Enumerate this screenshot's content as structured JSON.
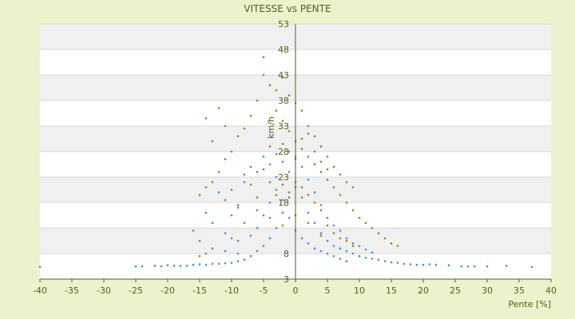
{
  "chart_data": {
    "type": "scatter",
    "title": "VITESSE vs PENTE",
    "xlabel": "Pente [%]",
    "ylabel": "km/h",
    "xlim": [
      -40,
      40
    ],
    "ylim": [
      3,
      53
    ],
    "x_ticks": [
      "-40",
      "-35",
      "-30",
      "-25",
      "-20",
      "-15",
      "-10",
      "-5",
      "0",
      "5",
      "10",
      "15",
      "20",
      "25",
      "30",
      "35",
      "40"
    ],
    "y_ticks": [
      "3",
      "8",
      "13",
      "18",
      "23",
      "28",
      "33",
      "38",
      "43",
      "48",
      "53"
    ],
    "y_tick_labels_shown": [
      "53",
      "48",
      "43",
      "38",
      "33",
      "28",
      "23",
      "18",
      "8",
      "3"
    ],
    "grid": true,
    "series": [
      {
        "color": "#3b8fd6",
        "points": [
          [
            -40,
            5.4
          ],
          [
            -25,
            5.5
          ],
          [
            -24,
            5.5
          ],
          [
            -22,
            5.6
          ],
          [
            -21,
            5.5
          ],
          [
            -20,
            5.7
          ],
          [
            -19,
            5.6
          ],
          [
            -18,
            5.6
          ],
          [
            -17,
            5.6
          ],
          [
            -16,
            5.8
          ],
          [
            -15,
            5.9
          ],
          [
            -14,
            5.8
          ],
          [
            -13,
            6.0
          ],
          [
            -12,
            6.0
          ],
          [
            -11,
            6.1
          ],
          [
            -10,
            6.2
          ],
          [
            -9,
            6.5
          ],
          [
            -8,
            6.8
          ],
          [
            -7,
            7.5
          ],
          [
            -6,
            8.5
          ],
          [
            -5,
            9.5
          ],
          [
            -4,
            11.0
          ],
          [
            -3,
            13.0
          ],
          [
            -2,
            16.0
          ],
          [
            -1,
            19.0
          ],
          [
            0,
            21.0
          ],
          [
            1,
            19.0
          ],
          [
            2,
            16.0
          ],
          [
            3,
            14.0
          ],
          [
            4,
            12.0
          ],
          [
            5,
            10.5
          ],
          [
            6,
            9.5
          ],
          [
            7,
            9.0
          ],
          [
            8,
            8.5
          ],
          [
            9,
            8.0
          ],
          [
            10,
            7.5
          ],
          [
            11,
            7.2
          ],
          [
            12,
            7.0
          ],
          [
            13,
            6.8
          ],
          [
            14,
            6.5
          ],
          [
            15,
            6.3
          ],
          [
            16,
            6.2
          ],
          [
            17,
            6.0
          ],
          [
            18,
            5.9
          ],
          [
            19,
            5.8
          ],
          [
            20,
            5.8
          ],
          [
            21,
            5.9
          ],
          [
            22,
            5.8
          ],
          [
            24,
            5.7
          ],
          [
            26,
            5.5
          ],
          [
            27,
            5.5
          ],
          [
            28,
            5.5
          ],
          [
            30,
            5.5
          ],
          [
            33,
            5.6
          ],
          [
            37,
            5.4
          ],
          [
            -12,
            20.0
          ],
          [
            -11,
            18.5
          ],
          [
            -10,
            20.5
          ],
          [
            -9,
            17.0
          ],
          [
            -8,
            22.0
          ],
          [
            -7,
            25.0
          ],
          [
            -6,
            24.0
          ],
          [
            -5,
            27.0
          ],
          [
            -4,
            25.5
          ],
          [
            -3,
            23.0
          ],
          [
            -2,
            26.0
          ],
          [
            -1,
            24.0
          ],
          [
            0,
            27.0
          ],
          [
            1,
            25.0
          ],
          [
            2,
            22.5
          ],
          [
            3,
            20.0
          ],
          [
            4,
            17.5
          ],
          [
            5,
            15.0
          ],
          [
            6,
            13.5
          ],
          [
            7,
            12.5
          ],
          [
            8,
            11.0
          ],
          [
            9,
            10.0
          ],
          [
            10,
            9.5
          ],
          [
            11,
            8.8
          ],
          [
            12,
            8.2
          ],
          [
            -14,
            16.0
          ],
          [
            -13,
            14.0
          ],
          [
            -11,
            12.0
          ],
          [
            -9,
            10.5
          ],
          [
            -7,
            11.5
          ],
          [
            -6,
            13.0
          ],
          [
            -5,
            15.5
          ],
          [
            -4,
            18.0
          ],
          [
            -3,
            20.5
          ],
          [
            -2,
            18.5
          ],
          [
            -1,
            15.0
          ],
          [
            0,
            12.5
          ],
          [
            1,
            11.0
          ],
          [
            2,
            10.0
          ],
          [
            3,
            9.0
          ],
          [
            4,
            8.5
          ],
          [
            5,
            8.0
          ],
          [
            6,
            7.5
          ],
          [
            7,
            7.0
          ],
          [
            8,
            6.5
          ],
          [
            -16,
            12.5
          ],
          [
            -15,
            10.5
          ],
          [
            -13,
            9.0
          ],
          [
            -11,
            8.5
          ],
          [
            -9,
            8.0
          ]
        ]
      },
      {
        "color": "#8a8a1a",
        "points": [
          [
            -5,
            46.5
          ],
          [
            -5,
            43.0
          ],
          [
            -4,
            41.0
          ],
          [
            -3,
            40.0
          ],
          [
            -2,
            42.5
          ],
          [
            -1,
            39.0
          ],
          [
            0,
            37.5
          ],
          [
            1,
            36.0
          ],
          [
            2,
            33.0
          ],
          [
            3,
            31.0
          ],
          [
            4,
            29.0
          ],
          [
            5,
            27.0
          ],
          [
            6,
            25.0
          ],
          [
            7,
            23.5
          ],
          [
            8,
            22.0
          ],
          [
            9,
            21.0
          ],
          [
            -6,
            38.0
          ],
          [
            -7,
            35.0
          ],
          [
            -8,
            32.5
          ],
          [
            -9,
            31.0
          ],
          [
            -10,
            28.0
          ],
          [
            -11,
            26.5
          ],
          [
            -12,
            24.0
          ],
          [
            -13,
            22.0
          ],
          [
            -14,
            21.0
          ],
          [
            -15,
            19.5
          ],
          [
            -12,
            36.5
          ],
          [
            -14,
            34.5
          ],
          [
            -13,
            30.0
          ],
          [
            -11,
            33.0
          ],
          [
            -3,
            36.0
          ],
          [
            -2,
            34.0
          ],
          [
            -1,
            32.0
          ],
          [
            0,
            30.0
          ],
          [
            1,
            28.5
          ],
          [
            2,
            27.0
          ],
          [
            3,
            25.5
          ],
          [
            4,
            24.0
          ],
          [
            5,
            22.5
          ],
          [
            6,
            21.0
          ],
          [
            7,
            19.5
          ],
          [
            8,
            18.0
          ],
          [
            9,
            16.5
          ],
          [
            10,
            15.0
          ],
          [
            11,
            14.0
          ],
          [
            12,
            13.0
          ],
          [
            13,
            12.0
          ],
          [
            14,
            11.0
          ],
          [
            15,
            10.0
          ],
          [
            16,
            9.5
          ],
          [
            -4,
            29.0
          ],
          [
            -3,
            27.5
          ],
          [
            -2,
            29.5
          ],
          [
            -1,
            28.0
          ],
          [
            0,
            26.5
          ],
          [
            1,
            30.5
          ],
          [
            2,
            31.5
          ],
          [
            3,
            28.0
          ],
          [
            4,
            26.0
          ],
          [
            5,
            24.5
          ],
          [
            -8,
            23.5
          ],
          [
            -7,
            21.5
          ],
          [
            -6,
            19.0
          ],
          [
            -9,
            17.5
          ],
          [
            -10,
            15.5
          ],
          [
            -5,
            24.5
          ],
          [
            -4,
            22.0
          ],
          [
            -3,
            19.5
          ],
          [
            -2,
            21.5
          ],
          [
            -1,
            20.0
          ],
          [
            0,
            22.0
          ],
          [
            1,
            21.0
          ],
          [
            2,
            19.5
          ],
          [
            3,
            18.0
          ],
          [
            4,
            16.5
          ],
          [
            5,
            13.5
          ],
          [
            6,
            12.0
          ],
          [
            7,
            11.0
          ],
          [
            8,
            10.5
          ],
          [
            9,
            9.5
          ],
          [
            -15,
            7.5
          ],
          [
            -14,
            8.0
          ],
          [
            -10,
            11.0
          ],
          [
            -8,
            14.0
          ],
          [
            -6,
            16.5
          ],
          [
            -4,
            15.0
          ],
          [
            -2,
            13.5
          ],
          [
            0,
            15.5
          ],
          [
            2,
            14.0
          ],
          [
            4,
            11.5
          ]
        ]
      }
    ]
  }
}
